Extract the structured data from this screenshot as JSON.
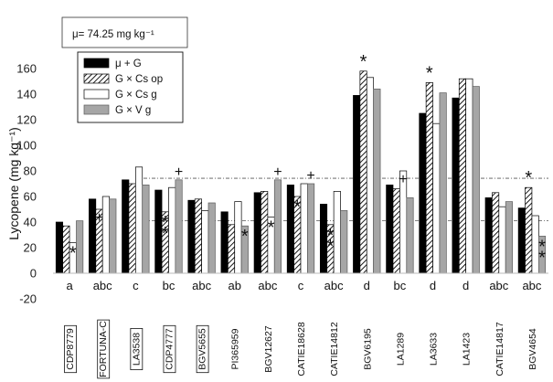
{
  "chart_data": {
    "type": "bar",
    "ylabel": "Lycopene (mg kg⁻¹)",
    "ylim": [
      -20,
      160
    ],
    "yticks": [
      -20,
      0,
      20,
      40,
      60,
      80,
      100,
      120,
      140,
      160
    ],
    "mean_annotation": "μ= 74.25 mg kg⁻¹",
    "reference_lines": [
      74.25,
      41
    ],
    "series": [
      {
        "name": "μ + G",
        "pattern": "solid-black",
        "values": [
          40,
          58,
          73,
          65,
          57,
          48,
          63,
          69,
          54,
          139,
          69,
          125,
          137,
          59,
          51
        ]
      },
      {
        "name": "G × Cs op",
        "pattern": "hatched",
        "values": [
          37,
          50,
          70,
          48,
          58,
          38,
          64,
          60,
          38,
          158,
          66,
          149,
          152,
          63,
          67
        ]
      },
      {
        "name": "G × Cs g",
        "pattern": "white",
        "values": [
          24,
          60,
          83,
          67,
          49,
          56,
          44,
          70,
          64,
          153,
          80,
          117,
          152,
          52,
          45
        ]
      },
      {
        "name": "G × V g",
        "pattern": "grey",
        "values": [
          41,
          58,
          69,
          73,
          55,
          37,
          73,
          70,
          49,
          144,
          59,
          141,
          146,
          56,
          29
        ]
      }
    ],
    "categories": [
      "CDP8779",
      "FORTUNA-C",
      "LA3538",
      "CDP4777",
      "BGV5655",
      "PI365959",
      "BGV12627",
      "CATIE18628",
      "CATIE14812",
      "BGV6195",
      "LA1289",
      "LA3633",
      "LA1423",
      "CATIE14817",
      "BGV4654"
    ],
    "boxed_categories": [
      0,
      1,
      2,
      3,
      4
    ],
    "group_letters": [
      "a",
      "abc",
      "c",
      "bc",
      "abc",
      "ab",
      "abc",
      "c",
      "abc",
      "d",
      "bc",
      "d",
      "d",
      "abc",
      "abc"
    ],
    "annotations": [
      {
        "category": 0,
        "series": 2,
        "symbol": "*",
        "position": "below"
      },
      {
        "category": 1,
        "series": 1,
        "symbol": "+",
        "position": "below"
      },
      {
        "category": 3,
        "series": 3,
        "symbol": "+",
        "position": "above"
      },
      {
        "category": 3,
        "series": 1,
        "symbol": "**",
        "position": "below"
      },
      {
        "category": 5,
        "series": 3,
        "symbol": "*",
        "position": "below"
      },
      {
        "category": 6,
        "series": 3,
        "symbol": "+",
        "position": "above"
      },
      {
        "category": 6,
        "series": 2,
        "symbol": "*",
        "position": "below"
      },
      {
        "category": 7,
        "series": 3,
        "symbol": "+",
        "position": "above"
      },
      {
        "category": 7,
        "series": 1,
        "symbol": "*",
        "position": "below"
      },
      {
        "category": 8,
        "series": 1,
        "symbol": "**",
        "position": "below"
      },
      {
        "category": 9,
        "series": 1,
        "symbol": "*",
        "position": "above"
      },
      {
        "category": 10,
        "series": 2,
        "symbol": "+",
        "position": "below"
      },
      {
        "category": 11,
        "series": 1,
        "symbol": "*",
        "position": "above"
      },
      {
        "category": 14,
        "series": 1,
        "symbol": "*",
        "position": "above"
      },
      {
        "category": 14,
        "series": 3,
        "symbol": "**",
        "position": "below"
      }
    ]
  }
}
